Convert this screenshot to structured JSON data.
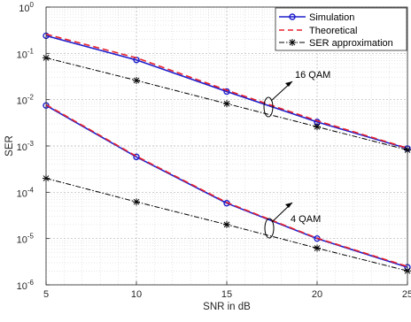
{
  "chart_data": {
    "type": "line",
    "xlabel": "SNR in dB",
    "ylabel": "SER",
    "x": [
      5,
      10,
      15,
      20,
      25
    ],
    "xlim": [
      5,
      25
    ],
    "ylim": [
      1e-06,
      1
    ],
    "yscale": "log",
    "grid": true,
    "legend_position": "top-right",
    "x_ticks": [
      "5",
      "10",
      "15",
      "20",
      "25"
    ],
    "y_ticks": [
      {
        "base": "10",
        "exp": "0"
      },
      {
        "base": "10",
        "exp": "-1"
      },
      {
        "base": "10",
        "exp": "-2"
      },
      {
        "base": "10",
        "exp": "-3"
      },
      {
        "base": "10",
        "exp": "-4"
      },
      {
        "base": "10",
        "exp": "-5"
      },
      {
        "base": "10",
        "exp": "-6"
      }
    ],
    "series": [
      {
        "name": "Simulation",
        "group": "16 QAM",
        "style": "solid-circle",
        "color": "#1f1fcc",
        "values": [
          0.24,
          0.072,
          0.015,
          0.0033,
          0.00088
        ]
      },
      {
        "name": "Theoretical",
        "group": "16 QAM",
        "style": "dashed",
        "color": "#e8212b",
        "values": [
          0.26,
          0.08,
          0.016,
          0.0035,
          0.0009
        ]
      },
      {
        "name": "SER approximation",
        "group": "16 QAM",
        "style": "dashdot-star",
        "color": "#000000",
        "values": [
          0.08,
          0.026,
          0.0082,
          0.0026,
          0.00082
        ]
      },
      {
        "name": "Simulation",
        "group": "4 QAM",
        "style": "solid-circle",
        "color": "#1f1fcc",
        "values": [
          0.0075,
          0.00058,
          5.8e-05,
          1e-05,
          2.4e-06
        ]
      },
      {
        "name": "Theoretical",
        "group": "4 QAM",
        "style": "dashed",
        "color": "#e8212b",
        "values": [
          0.0078,
          0.0006,
          6e-05,
          1.02e-05,
          2.5e-06
        ]
      },
      {
        "name": "SER approximation",
        "group": "4 QAM",
        "style": "dashdot-star",
        "color": "#000000",
        "values": [
          0.0002,
          6.2e-05,
          2e-05,
          6.2e-06,
          2e-06
        ]
      }
    ],
    "legend": [
      "Simulation",
      "Theoretical",
      "SER approximation"
    ],
    "annotations": [
      "16 QAM",
      "4 QAM"
    ]
  }
}
